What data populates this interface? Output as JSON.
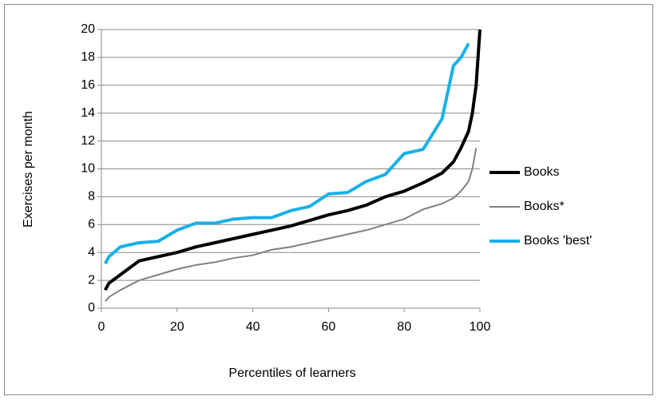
{
  "chart_data": {
    "type": "line",
    "x_label": "Percentiles of learners",
    "y_label": "Exercises per month",
    "x": [
      1,
      2,
      5,
      10,
      15,
      20,
      25,
      30,
      35,
      40,
      45,
      50,
      55,
      60,
      65,
      70,
      75,
      80,
      85,
      90,
      93,
      95,
      97,
      98,
      99,
      100
    ],
    "series": [
      {
        "name": "Books",
        "color": "#000000",
        "width": 4,
        "values": [
          1.3,
          1.8,
          2.4,
          3.4,
          3.7,
          4.0,
          4.4,
          4.7,
          5.0,
          5.3,
          5.6,
          5.9,
          6.3,
          6.7,
          7.0,
          7.4,
          8.0,
          8.4,
          9.0,
          9.7,
          10.5,
          11.5,
          12.7,
          14,
          16,
          20
        ]
      },
      {
        "name": "Books*",
        "color": "#808080",
        "width": 2,
        "values": [
          0.5,
          0.8,
          1.3,
          2.0,
          2.4,
          2.8,
          3.1,
          3.3,
          3.6,
          3.8,
          4.2,
          4.4,
          4.7,
          5.0,
          5.3,
          5.6,
          6.0,
          6.4,
          7.1,
          7.5,
          7.9,
          8.4,
          9.1,
          10,
          11.5,
          null
        ]
      },
      {
        "name": "Books 'best'",
        "color": "#1ab0e8",
        "width": 4,
        "values": [
          3.2,
          3.7,
          4.4,
          4.7,
          4.8,
          5.6,
          6.1,
          6.1,
          6.4,
          6.5,
          6.5,
          7.0,
          7.3,
          8.2,
          8.3,
          9.1,
          9.6,
          11.1,
          11.4,
          13.6,
          17.4,
          18.0,
          19.0,
          null,
          null,
          null
        ]
      }
    ],
    "xlim": [
      0,
      100
    ],
    "xticks": [
      0,
      20,
      40,
      60,
      80,
      100
    ],
    "ylim": [
      0,
      20
    ],
    "yticks": [
      0,
      2,
      4,
      6,
      8,
      10,
      12,
      14,
      16,
      18,
      20
    ],
    "grid": true,
    "legend": "right"
  }
}
